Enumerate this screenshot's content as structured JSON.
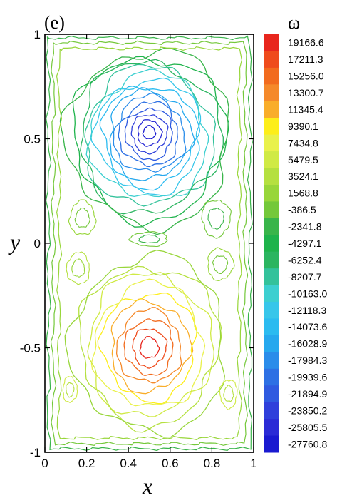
{
  "chart_data": {
    "type": "contour",
    "panel_label": "(e)",
    "xlabel": "x",
    "ylabel": "y",
    "xlim": [
      0,
      1
    ],
    "ylim": [
      -1,
      1
    ],
    "xticks": [
      "0",
      "0.2",
      "0.4",
      "0.6",
      "0.8",
      "1"
    ],
    "yticks": [
      "1",
      "0.5",
      "0",
      "-0.5",
      "-1"
    ],
    "colorbar": {
      "title": "ω",
      "levels": [
        "19166.6",
        "17211.3",
        "15256.0",
        "13300.7",
        "11345.4",
        "9390.1",
        "7434.8",
        "5479.5",
        "3524.1",
        "1568.8",
        "-386.5",
        "-2341.8",
        "-4297.1",
        "-6252.4",
        "-8207.7",
        "-10163.0",
        "-12118.3",
        "-14073.6",
        "-16028.9",
        "-17984.3",
        "-19939.6",
        "-21894.9",
        "-23850.2",
        "-25805.5",
        "-27760.8"
      ],
      "colors": [
        "#e8261d",
        "#ef4b1c",
        "#f26b1e",
        "#f5892a",
        "#f9ad2a",
        "#fdee1a",
        "#e9f14b",
        "#d0ea45",
        "#b5e040",
        "#98d63a",
        "#74c83a",
        "#39b54a",
        "#1eb34b",
        "#2bb560",
        "#33c29b",
        "#3ccfd0",
        "#37c6ea",
        "#2bbbf0",
        "#26a8ee",
        "#2a8cea",
        "#2d70e4",
        "#2f5ae0",
        "#2f3fdb",
        "#2b2bd6",
        "#1a1ad0"
      ]
    },
    "vortices": [
      {
        "center": [
          0.5,
          0.53
        ],
        "sign": "negative",
        "peak": -27760.8
      },
      {
        "center": [
          0.5,
          -0.5
        ],
        "sign": "positive",
        "peak": 19166.6
      }
    ]
  }
}
